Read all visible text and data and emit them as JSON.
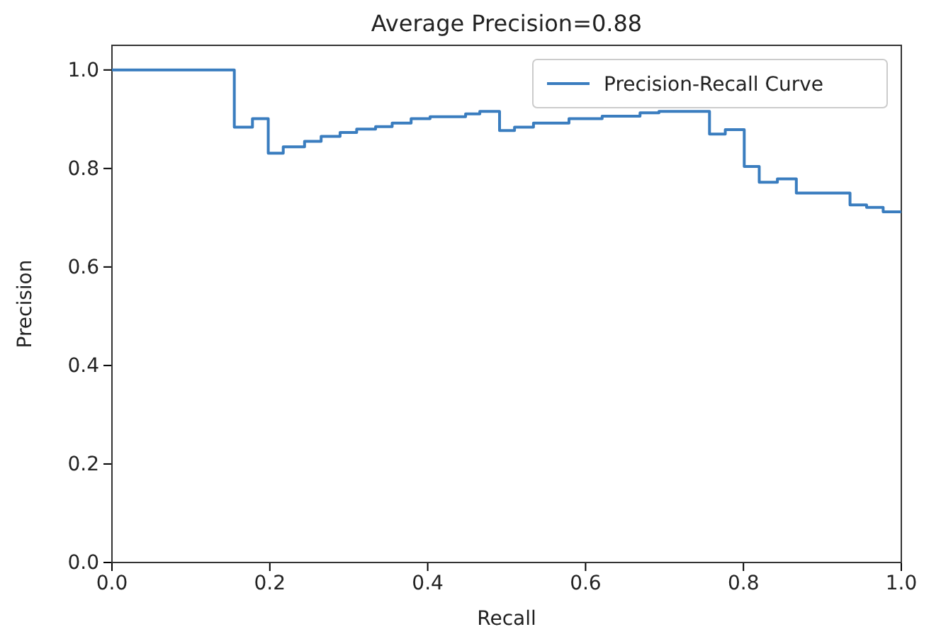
{
  "chart_data": {
    "type": "step",
    "title": "Average Precision=0.88",
    "xlabel": "Recall",
    "ylabel": "Precision",
    "series": [
      {
        "name": "Precision-Recall Curve",
        "color": "#3a7dbf",
        "x": [
          0,
          0.155,
          0.178,
          0.198,
          0.217,
          0.244,
          0.265,
          0.289,
          0.31,
          0.334,
          0.355,
          0.379,
          0.403,
          0.448,
          0.466,
          0.491,
          0.51,
          0.534,
          0.579,
          0.621,
          0.669,
          0.693,
          0.757,
          0.777,
          0.801,
          0.82,
          0.843,
          0.867,
          0.935,
          0.956,
          0.977,
          1.0
        ],
        "values": [
          1.0,
          0.884,
          0.901,
          0.831,
          0.844,
          0.855,
          0.865,
          0.873,
          0.88,
          0.885,
          0.892,
          0.901,
          0.905,
          0.911,
          0.916,
          0.877,
          0.884,
          0.892,
          0.901,
          0.906,
          0.913,
          0.916,
          0.87,
          0.879,
          0.804,
          0.772,
          0.779,
          0.75,
          0.726,
          0.721,
          0.712,
          0.712
        ]
      }
    ],
    "xlim": [
      0,
      1
    ],
    "ylim": [
      0,
      1.05
    ],
    "xticks": [
      {
        "value": 0,
        "label": "0.0"
      },
      0.2,
      0.4,
      0.6,
      0.8,
      {
        "value": 1,
        "label": "1.0"
      }
    ],
    "yticks": [
      {
        "value": 0,
        "label": "0.0"
      },
      0.2,
      0.4,
      0.6,
      0.8,
      {
        "value": 1,
        "label": "1.0"
      }
    ],
    "legend": "top right",
    "grid": false,
    "line_style": "solid",
    "marker": "none"
  }
}
